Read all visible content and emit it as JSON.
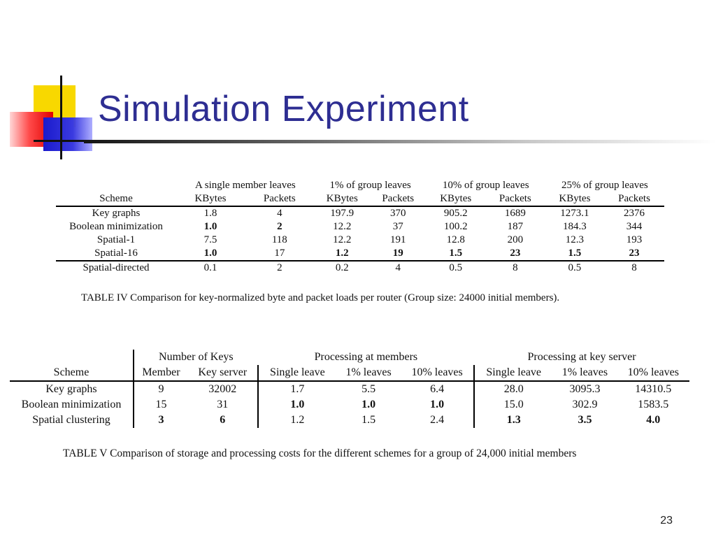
{
  "title": "Simulation Experiment",
  "page_number": "23",
  "table4": {
    "groups": [
      "A single member leaves",
      "1% of group leaves",
      "10% of group leaves",
      "25% of group leaves"
    ],
    "sub_headers": [
      "Scheme",
      "KBytes",
      "Packets",
      "KBytes",
      "Packets",
      "KBytes",
      "Packets",
      "KBytes",
      "Packets"
    ],
    "rows": [
      [
        "Key graphs",
        "1.8",
        "4",
        "197.9",
        "370",
        "905.2",
        "1689",
        "1273.1",
        "2376"
      ],
      [
        "Boolean minimization",
        "1.0",
        "2",
        "12.2",
        "37",
        "100.2",
        "187",
        "184.3",
        "344"
      ],
      [
        "Spatial-1",
        "7.5",
        "118",
        "12.2",
        "191",
        "12.8",
        "200",
        "12.3",
        "193"
      ],
      [
        "Spatial-16",
        "1.0",
        "17",
        "1.2",
        "19",
        "1.5",
        "23",
        "1.5",
        "23"
      ],
      [
        "Spatial-directed",
        "0.1",
        "2",
        "0.2",
        "4",
        "0.5",
        "8",
        "0.5",
        "8"
      ]
    ],
    "caption": "TABLE IV   Comparison for key-normalized byte and packet loads per router (Group size:  24000 initial members)."
  },
  "table5": {
    "groups": [
      "Number of Keys",
      "Processing at members",
      "Processing at key server"
    ],
    "sub_headers": [
      "Scheme",
      "Member",
      "Key server",
      "Single leave",
      "1% leaves",
      "10% leaves",
      "Single leave",
      "1% leaves",
      "10% leaves"
    ],
    "rows": [
      [
        "Key graphs",
        "9",
        "32002",
        "1.7",
        "5.5",
        "6.4",
        "28.0",
        "3095.3",
        "14310.5"
      ],
      [
        "Boolean minimization",
        "15",
        "31",
        "1.0",
        "1.0",
        "1.0",
        "15.0",
        "302.9",
        "1583.5"
      ],
      [
        "Spatial clustering",
        "3",
        "6",
        "1.2",
        "1.5",
        "2.4",
        "1.3",
        "3.5",
        "4.0"
      ]
    ],
    "caption": "TABLE V   Comparison of storage and processing costs for the different schemes for a group of 24,000 initial members"
  }
}
